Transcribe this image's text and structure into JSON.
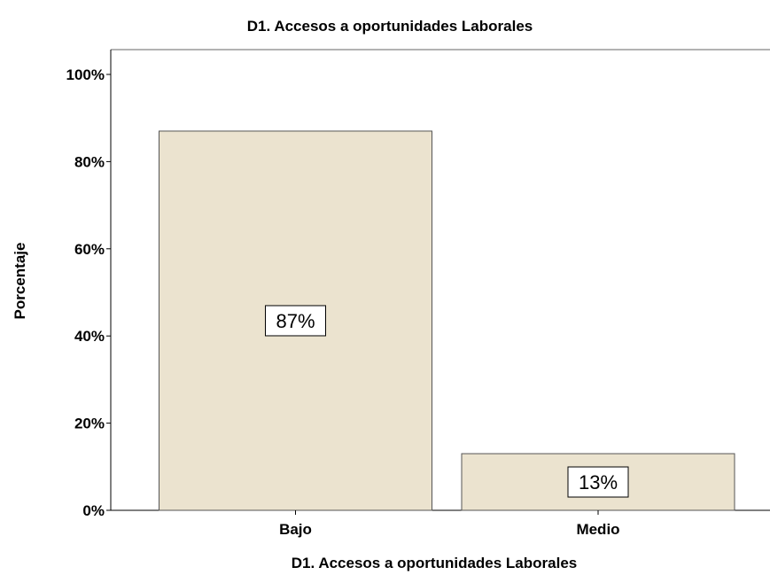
{
  "chart_data": {
    "type": "bar",
    "title": "D1. Accesos a oportunidades Laborales",
    "xlabel": "D1. Accesos a oportunidades Laborales",
    "ylabel": "Porcentaje",
    "categories": [
      "Bajo",
      "Medio"
    ],
    "values": [
      87,
      13
    ],
    "data_labels": [
      "87%",
      "13%"
    ],
    "ylim": [
      0,
      100
    ],
    "yticks": [
      0,
      20,
      40,
      60,
      80,
      100
    ],
    "ytick_labels": [
      "0%",
      "20%",
      "40%",
      "60%",
      "80%",
      "100%"
    ],
    "grid": false,
    "legend": "none",
    "bar_color": "#ebe3cf",
    "bar_stroke": "#555555"
  }
}
